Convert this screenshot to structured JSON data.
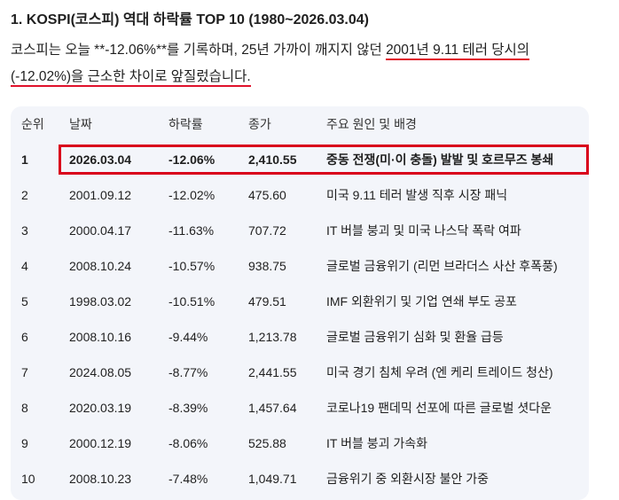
{
  "heading": "1. KOSPI(코스피) 역대 하락률 TOP 10 (1980~2026.03.04)",
  "paragraph": {
    "part1": "코스피는 오늘 **-12.06%**를 기록하며, 25년 가까이 깨지지 않던 ",
    "underlined1": "2001년 9.11 테러 당시의",
    "underlined2": "(-12.02%)을 근소한 차이로 앞질렀습니다."
  },
  "table": {
    "headers": [
      "순위",
      "날짜",
      "하락률",
      "종가",
      "주요 원인 및 배경"
    ],
    "rows": [
      {
        "rank": "1",
        "date": "2026.03.04",
        "drop": "-12.06%",
        "close": "2,410.55",
        "cause": "중동 전쟁(미·이 충돌) 발발 및 호르무즈 봉쇄"
      },
      {
        "rank": "2",
        "date": "2001.09.12",
        "drop": "-12.02%",
        "close": "475.60",
        "cause": "미국 9.11 테러 발생 직후 시장 패닉"
      },
      {
        "rank": "3",
        "date": "2000.04.17",
        "drop": "-11.63%",
        "close": "707.72",
        "cause": "IT 버블 붕괴 및 미국 나스닥 폭락 여파"
      },
      {
        "rank": "4",
        "date": "2008.10.24",
        "drop": "-10.57%",
        "close": "938.75",
        "cause": "글로벌 금융위기 (리먼 브라더스 사산 후폭풍)"
      },
      {
        "rank": "5",
        "date": "1998.03.02",
        "drop": "-10.51%",
        "close": "479.51",
        "cause": "IMF 외환위기 및 기업 연쇄 부도 공포"
      },
      {
        "rank": "6",
        "date": "2008.10.16",
        "drop": "-9.44%",
        "close": "1,213.78",
        "cause": "글로벌 금융위기 심화 및 환율 급등"
      },
      {
        "rank": "7",
        "date": "2024.08.05",
        "drop": "-8.77%",
        "close": "2,441.55",
        "cause": "미국 경기 침체 우려 (엔 케리 트레이드 청산)"
      },
      {
        "rank": "8",
        "date": "2020.03.19",
        "drop": "-8.39%",
        "close": "1,457.64",
        "cause": "코로나19 팬데믹 선포에 따른 글로벌 셧다운"
      },
      {
        "rank": "9",
        "date": "2000.12.19",
        "drop": "-8.06%",
        "close": "525.88",
        "cause": "IT 버블 붕괴 가속화"
      },
      {
        "rank": "10",
        "date": "2008.10.23",
        "drop": "-7.48%",
        "close": "1,049.71",
        "cause": "금융위기 중 외환시장 불안 가중"
      }
    ]
  },
  "colors": {
    "annotation_red": "#d9001b",
    "table_background": "#f3f5fa"
  }
}
